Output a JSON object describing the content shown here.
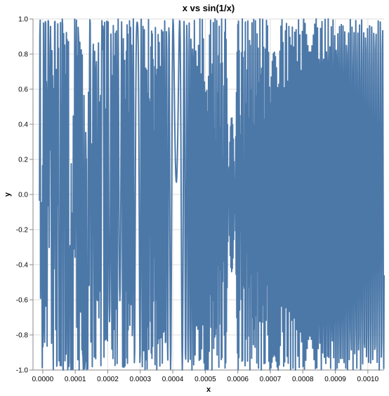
{
  "chart_data": {
    "type": "line",
    "title": "x vs sin(1/x)",
    "xlabel": "x",
    "ylabel": "y",
    "xlim": [
      -3e-05,
      0.00105
    ],
    "ylim": [
      -1.0,
      1.0
    ],
    "x_ticks": [
      "0.0000",
      "0.0001",
      "0.0002",
      "0.0003",
      "0.0004",
      "0.0005",
      "0.0006",
      "0.0007",
      "0.0008",
      "0.0009",
      "0.0010"
    ],
    "x_tick_values": [
      0,
      0.0001,
      0.0002,
      0.0003,
      0.0004,
      0.0005,
      0.0006,
      0.0007,
      0.0008,
      0.0009,
      0.001
    ],
    "y_ticks": [
      "-1.0",
      "-0.8",
      "-0.6",
      "-0.4",
      "-0.2",
      "0.0",
      "0.2",
      "0.4",
      "0.6",
      "0.8",
      "1.0"
    ],
    "y_tick_values": [
      -1.0,
      -0.8,
      -0.6,
      -0.4,
      -0.2,
      0.0,
      0.2,
      0.4,
      0.6,
      0.8,
      1.0
    ],
    "grid": true,
    "legend": "none",
    "series": [
      {
        "color": "#4c78a8",
        "function": "sin(1/x)",
        "x_start": -1e-05,
        "x_end": 0.00105,
        "n_points": 1000
      }
    ]
  }
}
